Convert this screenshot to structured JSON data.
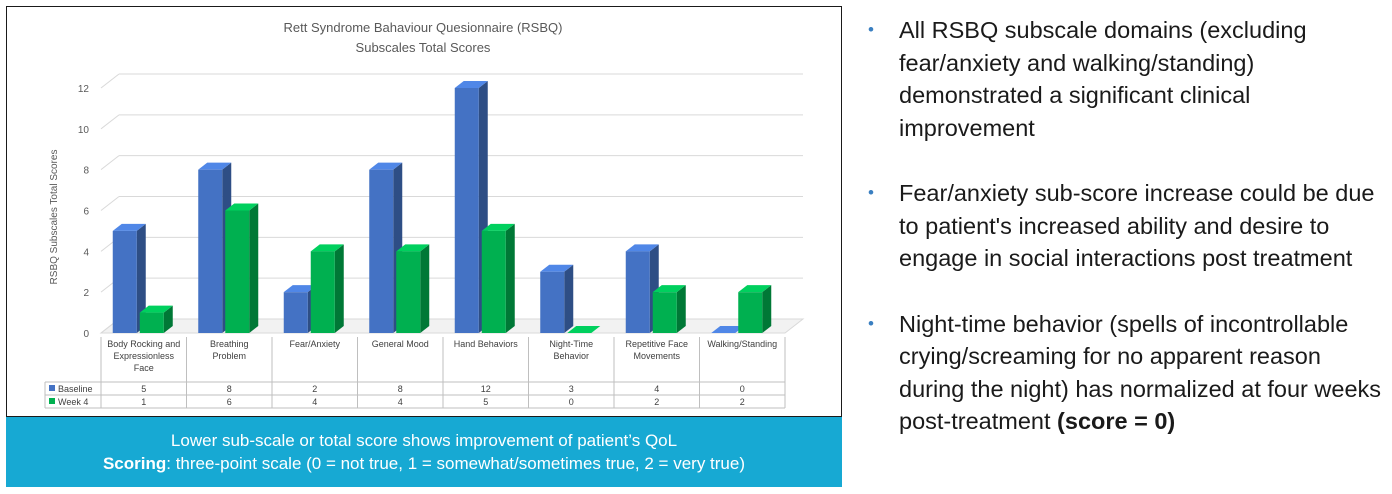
{
  "chart_data": {
    "type": "bar",
    "title": "Rett Syndrome Bahaviour Quesionnaire (RSBQ)",
    "subtitle": "Subscales Total Scores",
    "ylabel": "RSBQ Subscales Total Scores",
    "ylim": [
      0,
      12
    ],
    "yticks": [
      "0",
      "2",
      "4",
      "6",
      "8",
      "10",
      "12"
    ],
    "grid": true,
    "style": "3d-clustered-column",
    "categories": [
      [
        "Body Rocking and",
        "Expressionless",
        "Face"
      ],
      [
        "Breathing",
        "Problem"
      ],
      [
        "Fear/Anxiety"
      ],
      [
        "General Mood"
      ],
      [
        "Hand Behaviors"
      ],
      [
        "Night-Time",
        "Behavior"
      ],
      [
        "Repetitive Face",
        "Movements"
      ],
      [
        "Walking/Standing"
      ]
    ],
    "series": [
      {
        "name": "Baseline",
        "color": "#4472c4",
        "values": [
          5,
          8,
          2,
          8,
          12,
          3,
          4,
          0
        ]
      },
      {
        "name": "Week 4",
        "color": "#00b050",
        "values": [
          1,
          6,
          4,
          4,
          5,
          0,
          2,
          2
        ]
      }
    ],
    "data_table": {
      "rows": [
        {
          "label": "Baseline",
          "values": [
            "5",
            "8",
            "2",
            "8",
            "12",
            "3",
            "4",
            "0"
          ]
        },
        {
          "label": "Week 4",
          "values": [
            "1",
            "6",
            "4",
            "4",
            "5",
            "0",
            "2",
            "2"
          ]
        }
      ]
    }
  },
  "caption": {
    "line1": "Lower sub-scale or total score shows improvement of patient’s QoL",
    "scoring_label": "Scoring",
    "scoring_text": ": three-point scale (0 = not true, 1 = somewhat/sometimes true,  2 = very true)"
  },
  "bullets": [
    {
      "text": "All RSBQ subscale domains (excluding fear/anxiety and walking/standing) demonstrated a significant clinical improvement",
      "bold": ""
    },
    {
      "text": "Fear/anxiety sub-score increase could be due to patient's increased ability and desire to engage in social interactions post treatment",
      "bold": ""
    },
    {
      "text": "Night-time behavior (spells of incontrollable crying/screaming for no apparent reason during the night) has normalized at four weeks post-treatment ",
      "bold": "(score = 0)"
    }
  ],
  "bullet_symbol": "•"
}
